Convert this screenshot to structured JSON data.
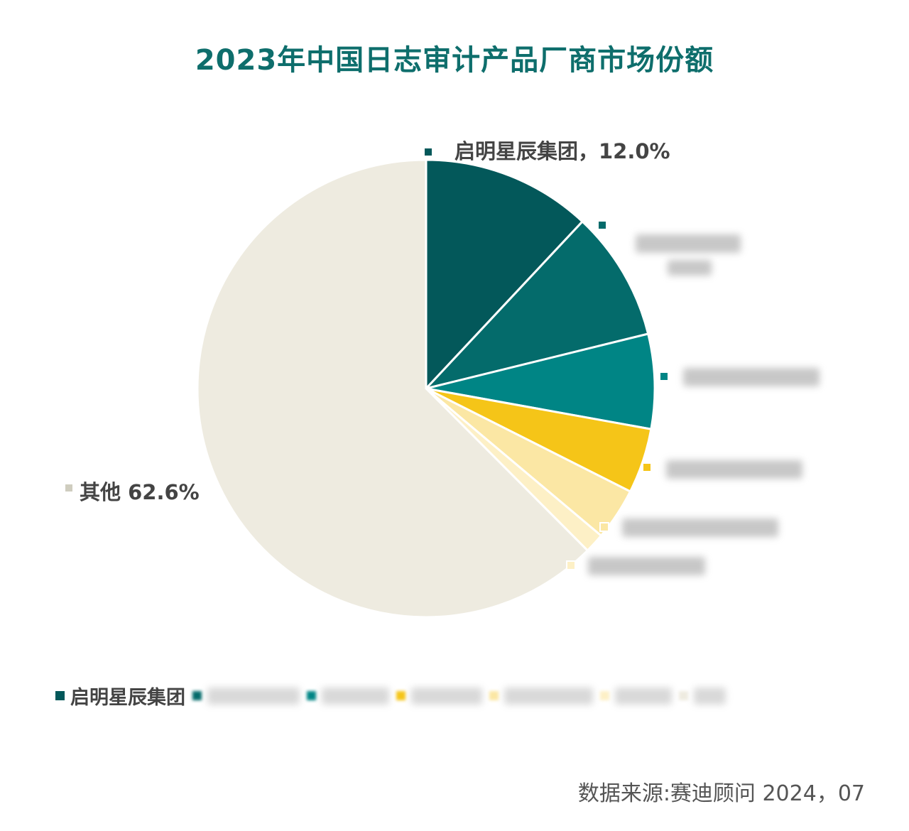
{
  "chart_data": {
    "type": "pie",
    "title": "2023年中国日志审计产品厂商市场份额",
    "start_angle": "top, clockwise",
    "slices": [
      {
        "name": "启明星辰集团",
        "value": 12.0,
        "label": "启明星辰集团，12.0%",
        "color": "#03585a"
      },
      {
        "value": 9.2,
        "color": "#046b6b",
        "label_blurred": true
      },
      {
        "value": 6.7,
        "color": "#008585",
        "label_blurred": true
      },
      {
        "value": 4.6,
        "color": "#f5c518",
        "label_blurred": true
      },
      {
        "value": 3.7,
        "color": "#fbe7a4",
        "label_blurred": true
      },
      {
        "value": 1.4,
        "color": "#fdf0c6",
        "label_blurred": true
      },
      {
        "name": "其他",
        "value": 62.6,
        "label": "其他 62.6%",
        "color": "#eeebe0"
      }
    ],
    "legend": {
      "placement": "bottom-left",
      "visible_entries": [
        "启明星辰集团"
      ]
    }
  },
  "source": "数据来源:赛迪顾问 2024，07"
}
